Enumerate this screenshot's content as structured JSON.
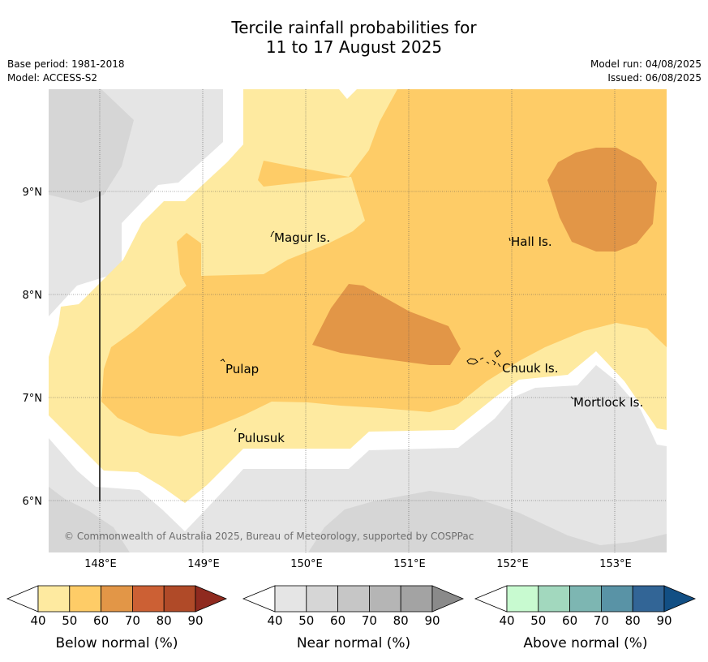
{
  "header": {
    "title_line1": "Tercile rainfall probabilities for",
    "title_line2": "11 to 17 August 2025",
    "base_period": "Base period: 1981-2018",
    "model": "Model: ACCESS-S2",
    "model_run": "Model run: 04/08/2025",
    "issued": "Issued: 06/08/2025"
  },
  "map": {
    "copyright": "© Commonwealth of Australia 2025, Bureau of Meteorology, supported by COSPPac",
    "lon_labels": [
      "148°E",
      "149°E",
      "150°E",
      "151°E",
      "152°E",
      "153°E"
    ],
    "lat_labels": [
      "9°N",
      "8°N",
      "7°N",
      "6°N"
    ],
    "places": [
      {
        "name": "Magur Is."
      },
      {
        "name": "Hall Is."
      },
      {
        "name": "Pulap"
      },
      {
        "name": "Chuuk Is."
      },
      {
        "name": "Mortlock Is."
      },
      {
        "name": "Pulusuk"
      }
    ],
    "colors": {
      "near_normal_40": "#e5e5e5",
      "near_normal_50": "#d6d6d6",
      "below_40": "#feeaa0",
      "below_50": "#fecc67",
      "below_60": "#e29647",
      "white_gap": "#ffffff"
    }
  },
  "legends": [
    {
      "label": "Below normal (%)",
      "ticks": [
        "40",
        "50",
        "60",
        "70",
        "80",
        "90"
      ],
      "colors": [
        "#feeaa0",
        "#fecc67",
        "#e29647",
        "#cc6034",
        "#b04a28",
        "#8f2a1f"
      ]
    },
    {
      "label": "Near normal (%)",
      "ticks": [
        "40",
        "50",
        "60",
        "70",
        "80",
        "90"
      ],
      "colors": [
        "#e5e5e5",
        "#d6d6d6",
        "#c6c6c6",
        "#b5b5b5",
        "#a3a3a3",
        "#8a8a8a"
      ]
    },
    {
      "label": "Above normal (%)",
      "ticks": [
        "40",
        "50",
        "60",
        "70",
        "80",
        "90"
      ],
      "colors": [
        "#c8fad0",
        "#a2d8be",
        "#7db6b2",
        "#5993a6",
        "#326596",
        "#124f84"
      ]
    }
  ]
}
